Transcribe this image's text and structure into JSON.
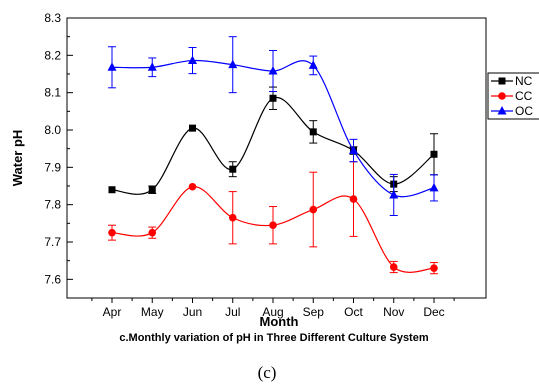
{
  "chart_data": {
    "type": "line",
    "xlabel": "Month",
    "ylabel": "Water pH",
    "caption": "c.Monthly variation of pH in Three Different Culture System",
    "panel_label": "(c)",
    "categories": [
      "Apr",
      "May",
      "Jun",
      "Jul",
      "Aug",
      "Sep",
      "Oct",
      "Nov",
      "Dec"
    ],
    "ylim": [
      7.55,
      8.3
    ],
    "yticks": [
      "7.6",
      "7.7",
      "7.8",
      "7.9",
      "8.0",
      "8.1",
      "8.2",
      "8.3"
    ],
    "grid": false,
    "legend_position": "right",
    "series": [
      {
        "name": "NC",
        "color": "#000000",
        "marker": "square",
        "values": [
          7.84,
          7.84,
          8.005,
          7.895,
          8.085,
          7.995,
          7.945,
          7.855,
          7.935
        ],
        "errors": [
          0,
          0.01,
          0,
          0.02,
          0.03,
          0.03,
          0.01,
          0.02,
          0.055
        ]
      },
      {
        "name": "CC",
        "color": "#ff0000",
        "marker": "circle",
        "values": [
          7.725,
          7.725,
          7.848,
          7.765,
          7.745,
          7.787,
          7.815,
          7.633,
          7.63
        ],
        "errors": [
          0.02,
          0.015,
          0,
          0.07,
          0.05,
          0.1,
          0.1,
          0.015,
          0.015
        ]
      },
      {
        "name": "OC",
        "color": "#0000ff",
        "marker": "triangle",
        "values": [
          8.168,
          8.168,
          8.186,
          8.175,
          8.158,
          8.173,
          7.945,
          7.826,
          7.845
        ],
        "errors": [
          0.055,
          0.025,
          0.035,
          0.075,
          0.055,
          0.025,
          0.03,
          0.055,
          0.035
        ]
      }
    ]
  }
}
